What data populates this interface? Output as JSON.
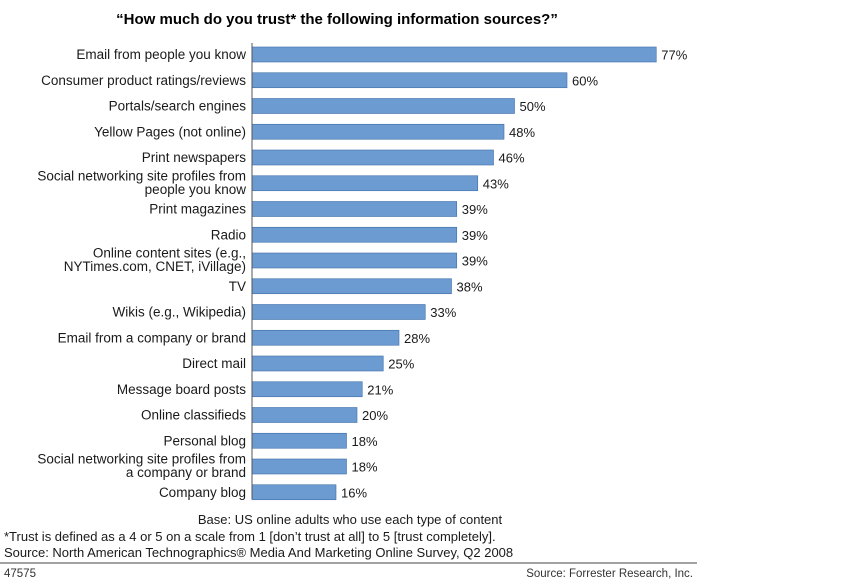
{
  "chart_data": {
    "type": "bar",
    "orientation": "horizontal",
    "title": "“How much do you trust* the following information sources?”",
    "categories": [
      [
        "Email from people you know"
      ],
      [
        "Consumer product ratings/reviews"
      ],
      [
        "Portals/search engines"
      ],
      [
        "Yellow Pages (not online)"
      ],
      [
        "Print newspapers"
      ],
      [
        "Social networking site profiles from",
        "people you know"
      ],
      [
        "Print magazines"
      ],
      [
        "Radio"
      ],
      [
        "Online content sites (e.g.,",
        "NYTimes.com, CNET, iVillage)"
      ],
      [
        "TV"
      ],
      [
        "Wikis (e.g., Wikipedia)"
      ],
      [
        "Email from a company or brand"
      ],
      [
        "Direct mail"
      ],
      [
        "Message board posts"
      ],
      [
        "Online classifieds"
      ],
      [
        "Personal blog"
      ],
      [
        "Social networking site profiles from",
        "a company or brand"
      ],
      [
        "Company blog"
      ]
    ],
    "values": [
      77,
      60,
      50,
      48,
      46,
      43,
      39,
      39,
      39,
      38,
      33,
      28,
      25,
      21,
      20,
      18,
      18,
      16
    ],
    "value_suffix": "%",
    "xlim": [
      0,
      100
    ],
    "bar_color": "#6b9bd1",
    "grid": false,
    "legend": "none"
  },
  "footnotes": {
    "base": "Base: US online adults who use each type of content",
    "trust_definition": "*Trust is defined as a 4 or 5 on a scale from 1 [don’t trust at all] to 5 [trust completely].",
    "source_survey": "Source: North American Technographics® Media And Marketing Online Survey, Q2 2008"
  },
  "footer": {
    "figure_id": "47575",
    "source": "Source: Forrester Research, Inc."
  }
}
